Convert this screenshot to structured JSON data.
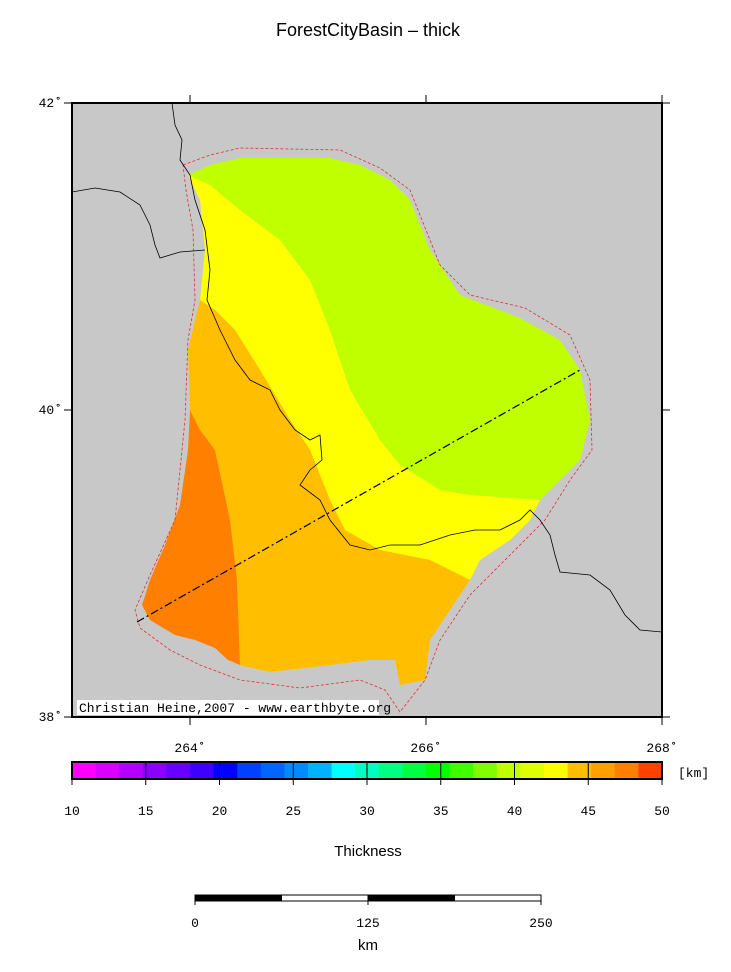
{
  "title": "ForestCityBasin – thick",
  "map": {
    "lon_range": [
      263,
      268
    ],
    "lat_range": [
      38,
      42
    ],
    "lon_ticks": [
      {
        "value": 264,
        "label": "264˚"
      },
      {
        "value": 266,
        "label": "266˚"
      },
      {
        "value": 268,
        "label": "268˚"
      }
    ],
    "lat_ticks": [
      {
        "value": 38,
        "label": "38˚"
      },
      {
        "value": 40,
        "label": "40˚"
      },
      {
        "value": 42,
        "label": "42˚"
      }
    ],
    "credit": "Christian Heine,2007 - www.earthbyte.org"
  },
  "colorbar": {
    "ticks": [
      10,
      15,
      20,
      25,
      30,
      35,
      40,
      45,
      50
    ],
    "unit": "[km]",
    "label": "Thickness",
    "colors": [
      "#ff00ff",
      "#d900ff",
      "#b300ff",
      "#8c00ff",
      "#6600ff",
      "#4000ff",
      "#0000ff",
      "#0040ff",
      "#0066ff",
      "#008cff",
      "#00b3ff",
      "#00ffff",
      "#00ffbf",
      "#00ff80",
      "#00ff40",
      "#00ff00",
      "#40ff00",
      "#80ff00",
      "#bfff00",
      "#e0ff00",
      "#ffff00",
      "#ffbf00",
      "#ff9f00",
      "#ff8000",
      "#ff4000"
    ]
  },
  "scale_bar": {
    "ticks": [
      0,
      125,
      250
    ],
    "unit": "km"
  }
}
